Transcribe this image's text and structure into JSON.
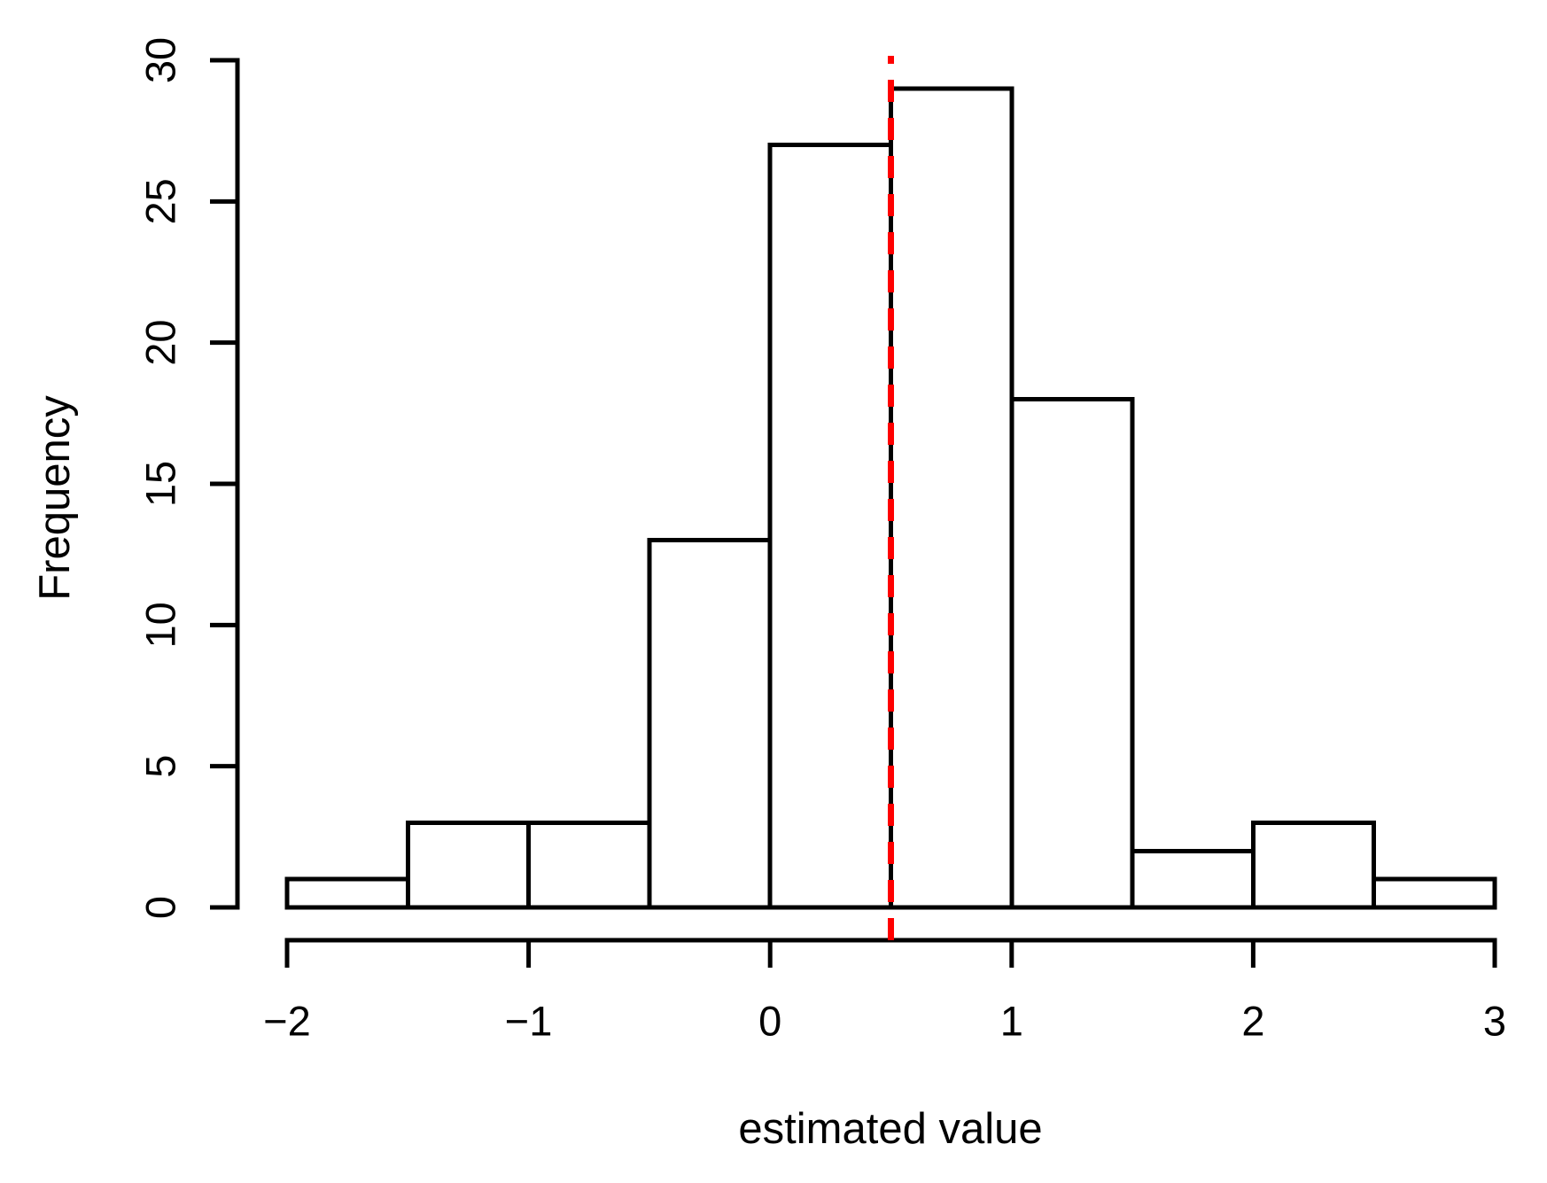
{
  "chart_data": {
    "type": "bar",
    "subtype": "histogram",
    "title": "",
    "xlabel": "estimated value",
    "ylabel": "Frequency",
    "breaks": [
      -2,
      -1.5,
      -1,
      -0.5,
      0,
      0.5,
      1,
      1.5,
      2,
      2.5,
      3
    ],
    "counts": [
      1,
      3,
      3,
      13,
      27,
      29,
      18,
      2,
      3,
      1
    ],
    "xlim": [
      -2,
      3
    ],
    "ylim": [
      0,
      30
    ],
    "grid": false,
    "legend": null,
    "x_ticks": [
      {
        "value": -2,
        "label": "−2"
      },
      {
        "value": -1,
        "label": "−1"
      },
      {
        "value": 0,
        "label": "0"
      },
      {
        "value": 1,
        "label": "1"
      },
      {
        "value": 2,
        "label": "2"
      },
      {
        "value": 3,
        "label": "3"
      }
    ],
    "y_ticks": [
      {
        "value": 0,
        "label": "0"
      },
      {
        "value": 5,
        "label": "5"
      },
      {
        "value": 10,
        "label": "10"
      },
      {
        "value": 15,
        "label": "15"
      },
      {
        "value": 20,
        "label": "20"
      },
      {
        "value": 25,
        "label": "25"
      },
      {
        "value": 30,
        "label": "30"
      }
    ],
    "reference_line": {
      "x": 0.5,
      "color": "#FF0000",
      "style": "dashed"
    },
    "colors": {
      "background": "#FFFFFF",
      "bar_fill": "#FFFFFF",
      "bar_border": "#000000",
      "axis": "#000000",
      "text": "#000000",
      "reference": "#FF0000"
    }
  }
}
